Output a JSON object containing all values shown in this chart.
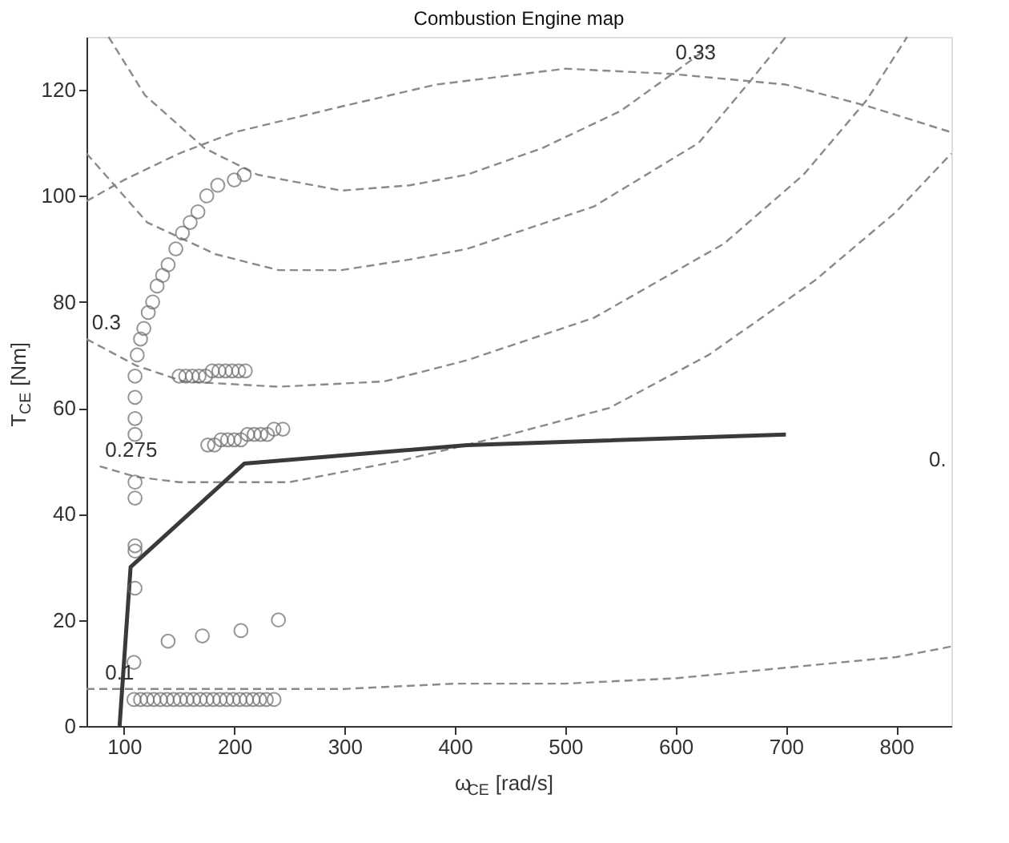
{
  "chart_data": {
    "type": "line",
    "title": "Combustion Engine map",
    "xlabel": "ω$_{CE}$ [rad/s]",
    "ylabel": "T$_{CE}$ [Nm]",
    "xlim": [
      66,
      850
    ],
    "ylim": [
      0,
      130
    ],
    "xticks": [
      100,
      200,
      300,
      400,
      500,
      600,
      700,
      800
    ],
    "yticks": [
      0,
      20,
      40,
      60,
      80,
      100,
      120
    ],
    "grid": false,
    "series": [
      {
        "line_style": "dashed",
        "color": "#8a8a8a",
        "x": [
          66,
          100,
          150,
          200,
          300,
          383,
          500,
          597,
          700,
          773,
          850
        ],
        "values": [
          99,
          103,
          108,
          112,
          117,
          121,
          124,
          123,
          121,
          117,
          112
        ]
      },
      {
        "line_style": "dashed",
        "color": "#8a8a8a",
        "x": [
          86,
          119,
          173,
          221,
          297,
          359,
          411,
          479,
          550,
          597,
          630
        ],
        "values": [
          130,
          119,
          109,
          104,
          101,
          102,
          104,
          109,
          116,
          123,
          128
        ]
      },
      {
        "line_style": "dashed",
        "color": "#8a8a8a",
        "x": [
          66,
          121,
          183,
          240,
          297,
          359,
          411,
          526,
          621,
          669,
          700
        ],
        "values": [
          108,
          95,
          89,
          86,
          86,
          88,
          90,
          98,
          110,
          122,
          130
        ]
      },
      {
        "line_style": "dashed",
        "color": "#8a8a8a",
        "x": [
          66,
          111,
          154,
          240,
          336,
          411,
          526,
          644,
          716,
          773,
          810
        ],
        "values": [
          73,
          68,
          65,
          64,
          65,
          69,
          77,
          91,
          104,
          118,
          130
        ]
      },
      {
        "line_style": "dashed",
        "color": "#8a8a8a",
        "x": [
          78,
          111,
          150,
          250,
          350,
          450,
          540,
          630,
          726,
          800,
          850
        ],
        "values": [
          49,
          47,
          46,
          46,
          50,
          55,
          60,
          70,
          84,
          97,
          108
        ]
      },
      {
        "line_style": "dashed",
        "color": "#8a8a8a",
        "x": [
          66,
          200,
          300,
          400,
          500,
          600,
          700,
          800,
          850
        ],
        "values": [
          7,
          7,
          7,
          8,
          8,
          9,
          11,
          13,
          15
        ]
      },
      {
        "line_style": "solid",
        "color": "#3a3a3a",
        "x": [
          96,
          106,
          209,
          411,
          700
        ],
        "values": [
          0,
          30,
          49.5,
          53,
          55
        ]
      },
      {
        "type": "scatter",
        "marker": "circle",
        "color": "#6a6a6a",
        "x": [
          109,
          110,
          110,
          110,
          110,
          110,
          110,
          110,
          110,
          110,
          112,
          115,
          118,
          122,
          126,
          130,
          135,
          140,
          147,
          153,
          160,
          167,
          175,
          185,
          200,
          209,
          150,
          156,
          162,
          168,
          174,
          180,
          186,
          192,
          198,
          204,
          210,
          176,
          182,
          188,
          194,
          200,
          206,
          212,
          218,
          224,
          230,
          236,
          244,
          140,
          171,
          206,
          240,
          109,
          115,
          121,
          127,
          133,
          139,
          145,
          151,
          157,
          163,
          169,
          175,
          181,
          187,
          193,
          199,
          205,
          211,
          217,
          223,
          229,
          236
        ],
        "values": [
          12,
          26,
          33,
          34,
          43,
          46,
          55,
          58,
          62,
          66,
          70,
          73,
          75,
          78,
          80,
          83,
          85,
          87,
          90,
          93,
          95,
          97,
          100,
          102,
          103,
          104,
          66,
          66,
          66,
          66,
          66,
          67,
          67,
          67,
          67,
          67,
          67,
          53,
          53,
          54,
          54,
          54,
          54,
          55,
          55,
          55,
          55,
          56,
          56,
          16,
          17,
          18,
          20,
          5,
          5,
          5,
          5,
          5,
          5,
          5,
          5,
          5,
          5,
          5,
          5,
          5,
          5,
          5,
          5,
          5,
          5,
          5,
          5,
          5,
          5
        ]
      }
    ],
    "annotations": [
      {
        "text": "0.1",
        "x": 80,
        "y": 7
      },
      {
        "text": "0.275",
        "x": 80,
        "y": 49
      },
      {
        "text": "0.3",
        "x": 68,
        "y": 73
      },
      {
        "text": "0.33",
        "x": 597,
        "y": 124
      },
      "0."
    ]
  }
}
